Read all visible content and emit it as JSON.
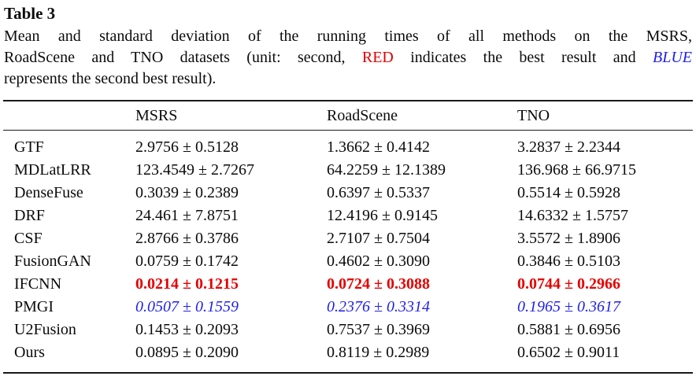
{
  "title": "Table 3",
  "caption_lines": [
    {
      "spread": true,
      "segments": [
        {
          "text": "Mean and standard deviation of the running times of all methods on the MSRS,",
          "style": "normal"
        }
      ]
    },
    {
      "spread": true,
      "segments": [
        {
          "text": "RoadScene and TNO datasets (unit: second, ",
          "style": "normal"
        },
        {
          "text": "RED",
          "style": "red"
        },
        {
          "text": " indicates the best result and ",
          "style": "normal"
        },
        {
          "text": "BLUE",
          "style": "blue-italic"
        }
      ]
    },
    {
      "spread": false,
      "segments": [
        {
          "text": "represents the second best result).",
          "style": "normal"
        }
      ]
    }
  ],
  "colors": {
    "best_result": "#e60000",
    "second_best_result": "#1f1fe8",
    "text": "#0b0b0b",
    "rule": "#1a1a1a"
  },
  "pm_symbol": "±",
  "table": {
    "columns": [
      "",
      "MSRS",
      "RoadScene",
      "TNO"
    ],
    "rows": [
      {
        "method": "GTF",
        "highlight": "none",
        "msrs": {
          "mean": "2.9756",
          "std": "0.5128"
        },
        "roadscene": {
          "mean": "1.3662",
          "std": "0.4142"
        },
        "tno": {
          "mean": "3.2837",
          "std": "2.2344"
        }
      },
      {
        "method": "MDLatLRR",
        "highlight": "none",
        "msrs": {
          "mean": "123.4549",
          "std": "2.7267"
        },
        "roadscene": {
          "mean": "64.2259",
          "std": "12.1389"
        },
        "tno": {
          "mean": "136.968",
          "std": "66.9715"
        }
      },
      {
        "method": "DenseFuse",
        "highlight": "none",
        "msrs": {
          "mean": "0.3039",
          "std": "0.2389"
        },
        "roadscene": {
          "mean": "0.6397",
          "std": "0.5337"
        },
        "tno": {
          "mean": "0.5514",
          "std": "0.5928"
        }
      },
      {
        "method": "DRF",
        "highlight": "none",
        "msrs": {
          "mean": "24.461",
          "std": "7.8751"
        },
        "roadscene": {
          "mean": "12.4196",
          "std": "0.9145"
        },
        "tno": {
          "mean": "14.6332",
          "std": "1.5757"
        }
      },
      {
        "method": "CSF",
        "highlight": "none",
        "msrs": {
          "mean": "2.8766",
          "std": "0.3786"
        },
        "roadscene": {
          "mean": "2.7107",
          "std": "0.7504"
        },
        "tno": {
          "mean": "3.5572",
          "std": "1.8906"
        }
      },
      {
        "method": "FusionGAN",
        "highlight": "none",
        "msrs": {
          "mean": "0.0759",
          "std": "0.1742"
        },
        "roadscene": {
          "mean": "0.4602",
          "std": "0.3090"
        },
        "tno": {
          "mean": "0.3846",
          "std": "0.5103"
        }
      },
      {
        "method": "IFCNN",
        "highlight": "best",
        "msrs": {
          "mean": "0.0214",
          "std": "0.1215"
        },
        "roadscene": {
          "mean": "0.0724",
          "std": "0.3088"
        },
        "tno": {
          "mean": "0.0744",
          "std": "0.2966"
        }
      },
      {
        "method": "PMGI",
        "highlight": "second",
        "msrs": {
          "mean": "0.0507",
          "std": "0.1559"
        },
        "roadscene": {
          "mean": "0.2376",
          "std": "0.3314"
        },
        "tno": {
          "mean": "0.1965",
          "std": "0.3617"
        }
      },
      {
        "method": "U2Fusion",
        "highlight": "none",
        "msrs": {
          "mean": "0.1453",
          "std": "0.2093"
        },
        "roadscene": {
          "mean": "0.7537",
          "std": "0.3969"
        },
        "tno": {
          "mean": "0.5881",
          "std": "0.6956"
        }
      },
      {
        "method": "Ours",
        "highlight": "none",
        "msrs": {
          "mean": "0.0895",
          "std": "0.2090"
        },
        "roadscene": {
          "mean": "0.8119",
          "std": "0.2989"
        },
        "tno": {
          "mean": "0.6502",
          "std": "0.9011"
        }
      }
    ]
  }
}
